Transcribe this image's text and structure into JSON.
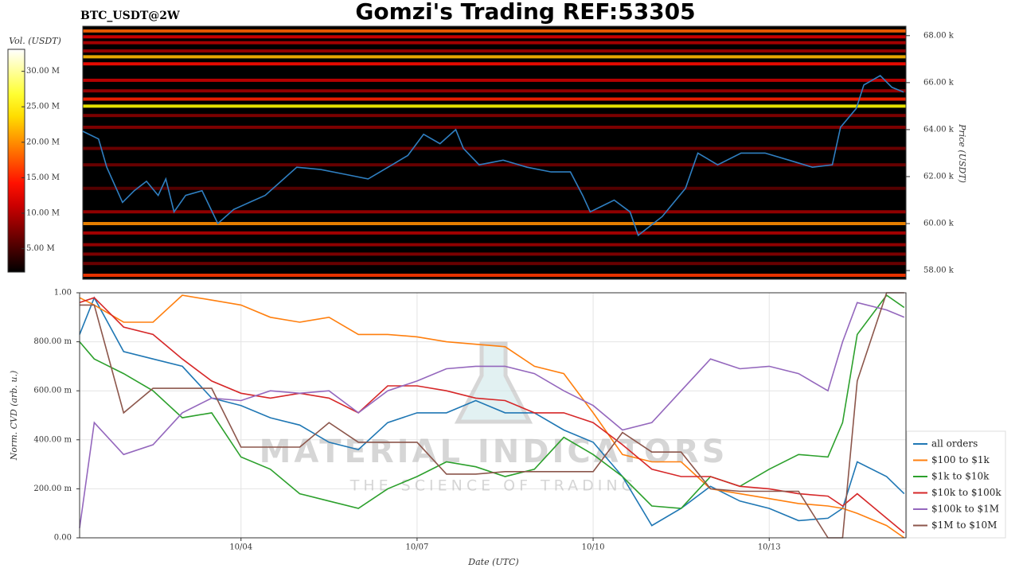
{
  "chart_data": [
    {
      "type": "heatmap",
      "title": "Gomzi's Trading REF:53305",
      "subtitle": "BTC_USDT@2W",
      "ylabel": "Price (USDT)",
      "color": "#2f7fc1",
      "colormap": "hot",
      "xlim": [
        1.25,
        15.33
      ],
      "ylim": [
        57630,
        68400
      ],
      "yticks": [
        {
          "value": 58000,
          "label": "58.00 k"
        },
        {
          "value": 60000,
          "label": "60.00 k"
        },
        {
          "value": 62000,
          "label": "62.00 k"
        },
        {
          "value": 64000,
          "label": "64.00 k"
        },
        {
          "value": 66000,
          "label": "66.00 k"
        },
        {
          "value": 68000,
          "label": "68.00 k"
        }
      ],
      "x": [
        1.25,
        1.52,
        1.66,
        1.93,
        2.13,
        2.34,
        2.54,
        2.67,
        2.81,
        3.01,
        3.29,
        3.56,
        3.83,
        4.1,
        4.37,
        4.64,
        4.91,
        5.32,
        5.73,
        6.13,
        6.54,
        6.81,
        7.08,
        7.36,
        7.63,
        7.76,
        8.03,
        8.44,
        8.85,
        9.26,
        9.59,
        9.8,
        9.93,
        10.34,
        10.61,
        10.75,
        11.16,
        11.56,
        11.77,
        12.11,
        12.51,
        12.92,
        13.33,
        13.73,
        14.07,
        14.21,
        14.48,
        14.61,
        14.89,
        15.09,
        15.29
      ],
      "values": [
        63930,
        63600,
        62400,
        60900,
        61400,
        61800,
        61200,
        61900,
        60500,
        61200,
        61400,
        60000,
        60600,
        60900,
        61200,
        61800,
        62400,
        62300,
        62100,
        61900,
        62500,
        62900,
        63800,
        63400,
        64000,
        63200,
        62500,
        62700,
        62400,
        62200,
        62200,
        61200,
        60500,
        61000,
        60500,
        59500,
        60300,
        61500,
        63000,
        62500,
        63000,
        63000,
        62700,
        62400,
        62500,
        64100,
        64900,
        65900,
        66300,
        65800,
        65600
      ],
      "colorbar": {
        "label": "Vol. (USDT)",
        "lim": [
          1700000,
          33100000
        ],
        "ticks": [
          {
            "value": 5000000,
            "label": "5.00 M"
          },
          {
            "value": 10000000,
            "label": "10.00 M"
          },
          {
            "value": 15000000,
            "label": "15.00 M"
          },
          {
            "value": 20000000,
            "label": "20.00 M"
          },
          {
            "value": 25000000,
            "label": "25.00 M"
          },
          {
            "value": 30000000,
            "label": "30.00 M"
          }
        ]
      },
      "bands": [
        {
          "price": 68200,
          "volume": 18000000
        },
        {
          "price": 67950,
          "volume": 12000000
        },
        {
          "price": 67700,
          "volume": 10000000
        },
        {
          "price": 67350,
          "volume": 9000000
        },
        {
          "price": 67100,
          "volume": 22000000
        },
        {
          "price": 66800,
          "volume": 14000000
        },
        {
          "price": 66100,
          "volume": 11000000
        },
        {
          "price": 65650,
          "volume": 9000000
        },
        {
          "price": 65300,
          "volume": 15000000
        },
        {
          "price": 65000,
          "volume": 25000000
        },
        {
          "price": 64600,
          "volume": 8000000
        },
        {
          "price": 64100,
          "volume": 8000000
        },
        {
          "price": 63200,
          "volume": 7000000
        },
        {
          "price": 62500,
          "volume": 7000000
        },
        {
          "price": 61500,
          "volume": 6000000
        },
        {
          "price": 60500,
          "volume": 9000000
        },
        {
          "price": 60000,
          "volume": 20000000
        },
        {
          "price": 59600,
          "volume": 10000000
        },
        {
          "price": 59100,
          "volume": 9000000
        },
        {
          "price": 58700,
          "volume": 8000000
        },
        {
          "price": 58300,
          "volume": 7000000
        },
        {
          "price": 57800,
          "volume": 16000000
        }
      ]
    },
    {
      "type": "line",
      "xlabel": "Date (UTC)",
      "ylabel": "Norm. CVD (arb. u.)",
      "grid": true,
      "legend": "lower right",
      "xlim": [
        1.25,
        15.33
      ],
      "ylim": [
        0,
        1
      ],
      "xticks": [
        {
          "value": 4,
          "label": "10/04"
        },
        {
          "value": 7,
          "label": "10/07"
        },
        {
          "value": 10,
          "label": "10/10"
        },
        {
          "value": 13,
          "label": "10/13"
        }
      ],
      "yticks": [
        {
          "value": 0,
          "label": "0.00"
        },
        {
          "value": 0.2,
          "label": "200.00 m"
        },
        {
          "value": 0.4,
          "label": "400.00 m"
        },
        {
          "value": 0.6,
          "label": "600.00 m"
        },
        {
          "value": 0.8,
          "label": "800.00 m"
        },
        {
          "value": 1,
          "label": "1.00"
        }
      ],
      "x": [
        1.25,
        1.5,
        2,
        2.5,
        3,
        3.5,
        4,
        4.5,
        5,
        5.5,
        6,
        6.5,
        7,
        7.5,
        8,
        8.5,
        9,
        9.5,
        10,
        10.5,
        11,
        11.5,
        12,
        12.5,
        13,
        13.5,
        14,
        14.25,
        14.5,
        15,
        15.3
      ],
      "series": [
        {
          "name": "all orders",
          "color": "#1f77b4",
          "values": [
            0.83,
            0.98,
            0.76,
            0.73,
            0.7,
            0.57,
            0.54,
            0.49,
            0.46,
            0.39,
            0.36,
            0.47,
            0.51,
            0.51,
            0.56,
            0.51,
            0.51,
            0.44,
            0.39,
            0.25,
            0.05,
            0.12,
            0.21,
            0.15,
            0.12,
            0.07,
            0.08,
            0.12,
            0.31,
            0.25,
            0.18
          ]
        },
        {
          "name": "$100 to $1k",
          "color": "#ff7f0e",
          "values": [
            0.98,
            0.95,
            0.88,
            0.88,
            0.99,
            0.97,
            0.95,
            0.9,
            0.88,
            0.9,
            0.83,
            0.83,
            0.82,
            0.8,
            0.79,
            0.78,
            0.7,
            0.67,
            0.51,
            0.34,
            0.31,
            0.31,
            0.2,
            0.18,
            0.16,
            0.14,
            0.13,
            0.12,
            0.1,
            0.05,
            0.0
          ]
        },
        {
          "name": "$1k to $10k",
          "color": "#2ca02c",
          "values": [
            0.8,
            0.73,
            0.67,
            0.6,
            0.49,
            0.51,
            0.33,
            0.28,
            0.18,
            0.15,
            0.12,
            0.2,
            0.25,
            0.31,
            0.29,
            0.25,
            0.28,
            0.41,
            0.34,
            0.25,
            0.13,
            0.12,
            0.25,
            0.21,
            0.28,
            0.34,
            0.33,
            0.47,
            0.83,
            0.99,
            0.94
          ]
        },
        {
          "name": "$10k to $100k",
          "color": "#d62728",
          "values": [
            0.96,
            0.98,
            0.86,
            0.83,
            0.73,
            0.64,
            0.59,
            0.57,
            0.59,
            0.57,
            0.51,
            0.62,
            0.62,
            0.6,
            0.57,
            0.56,
            0.51,
            0.51,
            0.47,
            0.38,
            0.28,
            0.25,
            0.25,
            0.21,
            0.2,
            0.18,
            0.17,
            0.13,
            0.18,
            0.08,
            0.02
          ]
        },
        {
          "name": "$100k to $1M",
          "color": "#9467bd",
          "values": [
            0.04,
            0.47,
            0.34,
            0.38,
            0.51,
            0.57,
            0.56,
            0.6,
            0.59,
            0.6,
            0.51,
            0.6,
            0.64,
            0.69,
            0.7,
            0.7,
            0.67,
            0.6,
            0.54,
            0.44,
            0.47,
            0.6,
            0.73,
            0.69,
            0.7,
            0.67,
            0.6,
            0.8,
            0.96,
            0.93,
            0.9
          ]
        },
        {
          "name": "$1M to $10M",
          "color": "#8c564b",
          "values": [
            0.95,
            0.95,
            0.51,
            0.61,
            0.61,
            0.61,
            0.37,
            0.37,
            0.37,
            0.47,
            0.39,
            0.39,
            0.39,
            0.26,
            0.26,
            0.27,
            0.27,
            0.27,
            0.27,
            0.43,
            0.35,
            0.35,
            0.2,
            0.19,
            0.19,
            0.19,
            0.0,
            0.0,
            0.64,
            1.0,
            1.0
          ]
        }
      ]
    }
  ],
  "watermark": {
    "title": "MATERIAL INDICATORS",
    "tagline": "THE SCIENCE OF TRADING"
  }
}
